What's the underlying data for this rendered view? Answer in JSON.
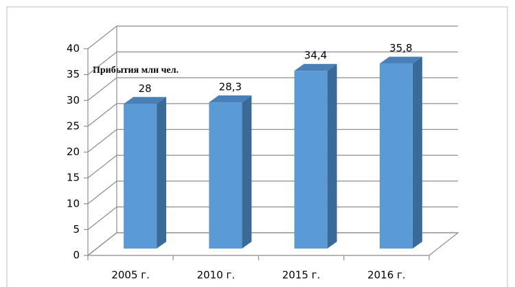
{
  "chart_data": {
    "type": "bar3d",
    "ylabel": "Прибытия млн чел.",
    "categories": [
      "2005 г.",
      "2010 г.",
      "2015 г.",
      "2016 г."
    ],
    "values": [
      28,
      28.3,
      34.4,
      35.8
    ],
    "value_labels": [
      "28",
      "28,3",
      "34,4",
      "35,8"
    ],
    "color": "#5b9bd5",
    "ylim": [
      0,
      40
    ],
    "yticks": [
      0,
      5,
      10,
      15,
      20,
      25,
      30,
      35,
      40
    ],
    "grid": true
  }
}
